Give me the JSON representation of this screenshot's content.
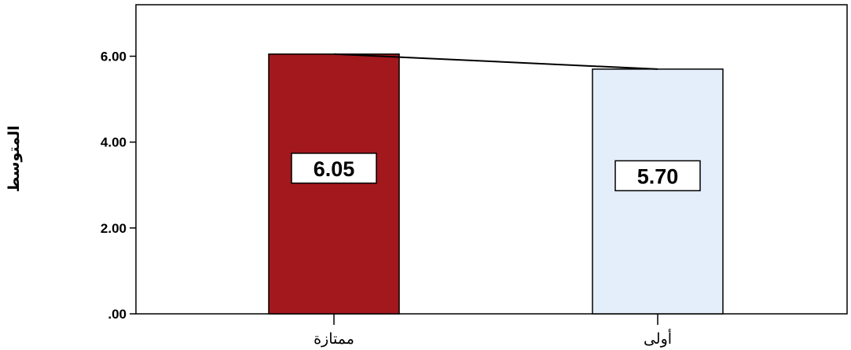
{
  "chart_data": {
    "type": "bar",
    "categories": [
      "ممتازة",
      "أولى"
    ],
    "values": [
      6.05,
      5.7
    ],
    "data_labels": [
      "6.05",
      "5.70"
    ],
    "colors": [
      "#a3181c",
      "#e4eefb"
    ],
    "ylabel": "المتوسط",
    "xlabel": "",
    "ylim": [
      0,
      7.2
    ],
    "yticks": [
      0,
      2,
      4,
      6
    ],
    "ytick_labels": [
      ".00",
      "2.00",
      "4.00",
      "6.00"
    ],
    "grid": false,
    "trend_line": true
  }
}
